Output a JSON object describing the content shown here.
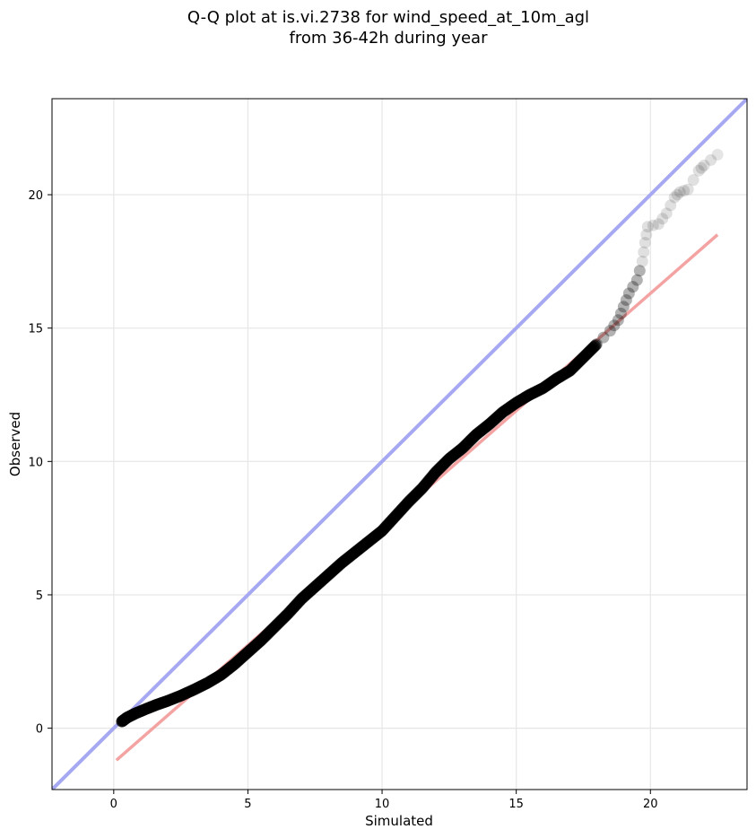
{
  "chart_data": {
    "type": "scatter",
    "title_lines": [
      "Q-Q plot at is.vi.2738 for wind_speed_at_10m_agl",
      "from 36-42h during year"
    ],
    "xlabel": "Simulated",
    "ylabel": "Observed",
    "xlim": [
      -2.3,
      23.6
    ],
    "ylim": [
      -2.3,
      23.6
    ],
    "xticks": [
      0,
      5,
      10,
      15,
      20
    ],
    "yticks": [
      0,
      5,
      10,
      15,
      20
    ],
    "grid": true,
    "identity_line": {
      "color": "#a6a8f2",
      "from": [
        -2.3,
        -2.3
      ],
      "to": [
        23.6,
        23.6
      ]
    },
    "fit_line": {
      "color": "#f4a3a3",
      "from": [
        0.1,
        -1.2
      ],
      "to": [
        22.5,
        18.5
      ]
    },
    "point_color": "#000000",
    "quantiles": [
      [
        0.3,
        0.25
      ],
      [
        0.5,
        0.4
      ],
      [
        0.8,
        0.55
      ],
      [
        1.2,
        0.72
      ],
      [
        1.6,
        0.88
      ],
      [
        2.0,
        1.02
      ],
      [
        2.5,
        1.22
      ],
      [
        3.0,
        1.45
      ],
      [
        3.5,
        1.7
      ],
      [
        4.0,
        2.0
      ],
      [
        4.5,
        2.4
      ],
      [
        5.0,
        2.85
      ],
      [
        5.5,
        3.3
      ],
      [
        6.0,
        3.8
      ],
      [
        6.5,
        4.3
      ],
      [
        7.0,
        4.85
      ],
      [
        7.5,
        5.3
      ],
      [
        8.0,
        5.75
      ],
      [
        8.5,
        6.2
      ],
      [
        9.0,
        6.6
      ],
      [
        9.5,
        7.0
      ],
      [
        10.0,
        7.4
      ],
      [
        10.5,
        7.95
      ],
      [
        11.0,
        8.5
      ],
      [
        11.5,
        9.0
      ],
      [
        12.0,
        9.6
      ],
      [
        12.5,
        10.1
      ],
      [
        13.0,
        10.5
      ],
      [
        13.5,
        11.0
      ],
      [
        14.0,
        11.4
      ],
      [
        14.5,
        11.85
      ],
      [
        15.0,
        12.2
      ],
      [
        15.5,
        12.5
      ],
      [
        16.0,
        12.75
      ],
      [
        16.5,
        13.1
      ],
      [
        17.0,
        13.4
      ],
      [
        17.5,
        13.9
      ],
      [
        18.0,
        14.4
      ],
      [
        18.5,
        14.9
      ],
      [
        18.8,
        15.3
      ],
      [
        19.0,
        15.8
      ],
      [
        19.2,
        16.3
      ],
      [
        19.5,
        16.8
      ],
      [
        19.7,
        17.5
      ],
      [
        19.8,
        18.2
      ],
      [
        19.9,
        18.8
      ],
      [
        20.3,
        18.9
      ],
      [
        20.6,
        19.3
      ],
      [
        20.9,
        19.9
      ],
      [
        21.1,
        20.1
      ],
      [
        21.4,
        20.2
      ],
      [
        21.8,
        20.9
      ],
      [
        22.0,
        21.1
      ],
      [
        22.5,
        21.5
      ]
    ]
  }
}
